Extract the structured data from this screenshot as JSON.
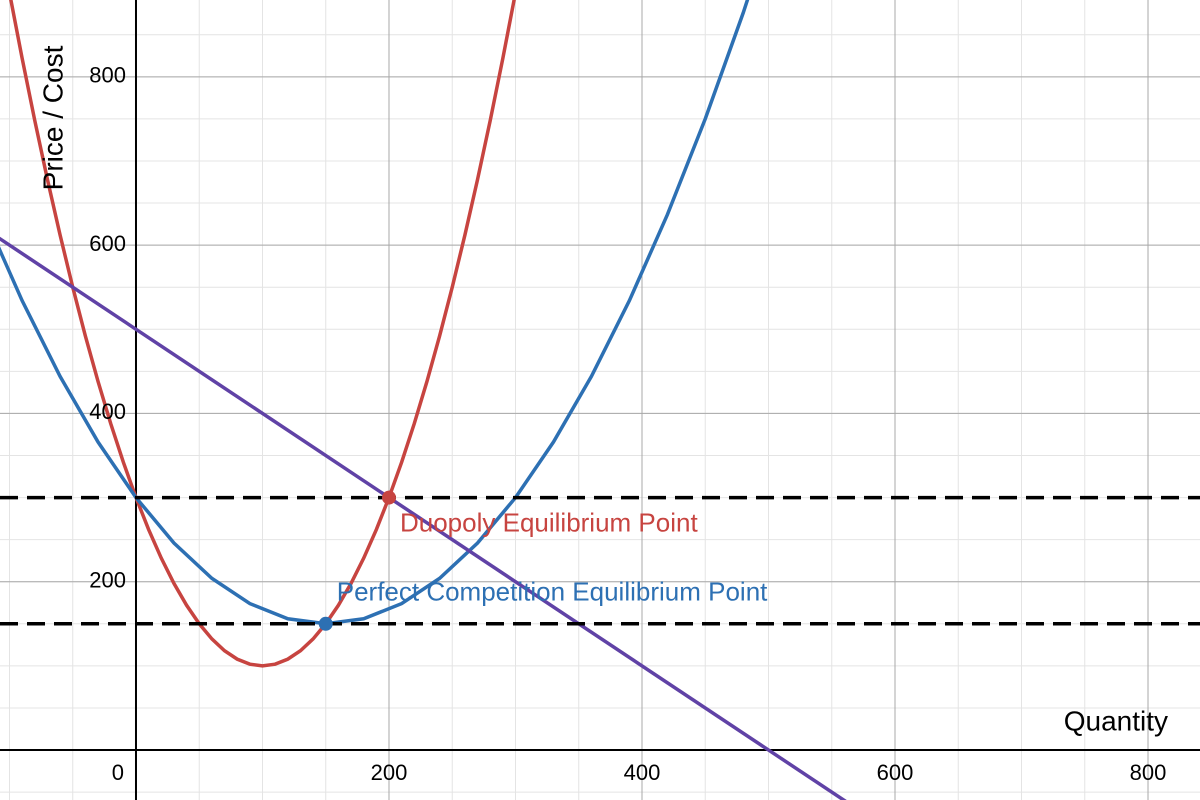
{
  "chart_data": {
    "type": "line",
    "x_label": "Quantity",
    "y_label": "Price / Cost",
    "xlim": [
      -107.5,
      841.1
    ],
    "ylim": [
      -59.4,
      891.3
    ],
    "xticks": [
      0,
      200,
      400,
      600,
      800
    ],
    "yticks": [
      200,
      400,
      600,
      800
    ],
    "grid": true,
    "series": [
      {
        "color": "#c74440",
        "x": [
          -100,
          -90,
          -80,
          -70,
          -60,
          -50,
          -40,
          -30,
          -20,
          -10,
          0,
          10,
          20,
          30,
          40,
          50,
          60,
          70,
          80,
          90,
          100,
          110,
          120,
          130,
          140,
          150,
          160,
          170,
          180,
          190,
          200,
          210,
          220,
          230,
          240,
          250,
          260,
          270,
          280,
          290,
          300
        ],
        "values": [
          900,
          822,
          748,
          678,
          612,
          550,
          492,
          438,
          388,
          342,
          300,
          262,
          228,
          198,
          172,
          150,
          132,
          118,
          108,
          102,
          100,
          102,
          108,
          118,
          132,
          150,
          172,
          198,
          228,
          262,
          300,
          342,
          388,
          438,
          492,
          550,
          612,
          678,
          748,
          822,
          900
        ]
      },
      {
        "color": "#2d70b3",
        "x": [
          -120,
          -90,
          -60,
          -30,
          0,
          30,
          60,
          90,
          120,
          150,
          180,
          210,
          240,
          270,
          300,
          330,
          360,
          390,
          420,
          450,
          480,
          510
        ],
        "values": [
          636,
          534,
          444,
          366,
          300,
          246,
          204,
          174,
          156,
          150,
          156,
          174,
          204,
          246,
          300,
          366,
          444,
          534,
          636,
          750,
          876,
          1014
        ]
      },
      {
        "color": "#6042a6",
        "x": [
          -120,
          600
        ],
        "values": [
          620,
          -100
        ]
      }
    ],
    "hlines": [
      300,
      150
    ],
    "points": [
      {
        "x": 200,
        "y": 300,
        "color": "#c74440",
        "label": "Duopoly Equilibrium Point"
      },
      {
        "x": 150,
        "y": 150,
        "color": "#2d70b3",
        "label": "Perfect Competition Equilibrium Point"
      }
    ]
  }
}
